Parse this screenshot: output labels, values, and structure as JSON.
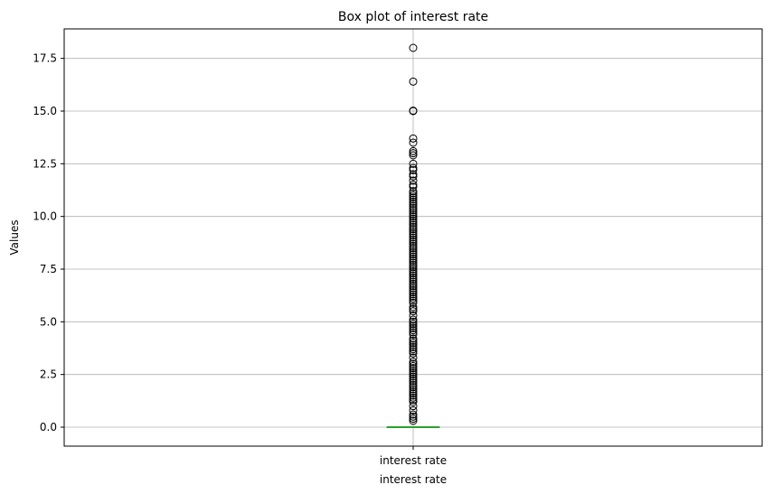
{
  "chart_data": {
    "type": "box",
    "title": "Box plot of interest rate",
    "xlabel": "interest rate",
    "ylabel": "Values",
    "categories": [
      "interest rate"
    ],
    "ylim": [
      -0.9,
      18.9
    ],
    "yticks": [
      0.0,
      2.5,
      5.0,
      7.5,
      10.0,
      12.5,
      15.0,
      17.5
    ],
    "ytick_labels": [
      "0.0",
      "2.5",
      "5.0",
      "7.5",
      "10.0",
      "12.5",
      "15.0",
      "17.5"
    ],
    "grid": true,
    "box": {
      "q1": 0.0,
      "median": 0.0,
      "q3": 0.0,
      "whisker_low": 0.0,
      "whisker_high": 0.0
    },
    "outliers": [
      0.3,
      0.4,
      0.5,
      0.6,
      0.8,
      1.0,
      1.2,
      1.3,
      1.4,
      1.5,
      1.6,
      1.7,
      1.8,
      1.9,
      2.0,
      2.1,
      2.2,
      2.3,
      2.4,
      2.5,
      2.6,
      2.7,
      2.8,
      2.9,
      3.0,
      3.1,
      3.3,
      3.5,
      3.6,
      3.7,
      3.8,
      3.9,
      4.0,
      4.1,
      4.2,
      4.4,
      4.5,
      4.6,
      4.7,
      4.8,
      4.9,
      5.0,
      5.1,
      5.3,
      5.5,
      5.6,
      5.7,
      5.9,
      6.0,
      6.1,
      6.2,
      6.3,
      6.4,
      6.5,
      6.6,
      6.7,
      6.8,
      6.9,
      7.0,
      7.1,
      7.2,
      7.3,
      7.4,
      7.5,
      7.6,
      7.7,
      7.8,
      7.9,
      8.0,
      8.1,
      8.2,
      8.3,
      8.4,
      8.5,
      8.6,
      8.7,
      8.8,
      8.9,
      9.0,
      9.1,
      9.2,
      9.3,
      9.4,
      9.5,
      9.6,
      9.7,
      9.8,
      9.9,
      10.0,
      10.1,
      10.2,
      10.3,
      10.4,
      10.5,
      10.6,
      10.7,
      10.8,
      10.9,
      11.0,
      11.1,
      11.2,
      11.4,
      11.5,
      11.7,
      11.9,
      12.0,
      12.2,
      12.3,
      12.5,
      12.9,
      13.0,
      13.1,
      13.5,
      13.7,
      15.0,
      15.02,
      16.4,
      18.0
    ],
    "colors": {
      "median": "#2ca02c",
      "box": "#1f77b4",
      "grid": "#b0b0b0",
      "marker": "#000000"
    }
  }
}
